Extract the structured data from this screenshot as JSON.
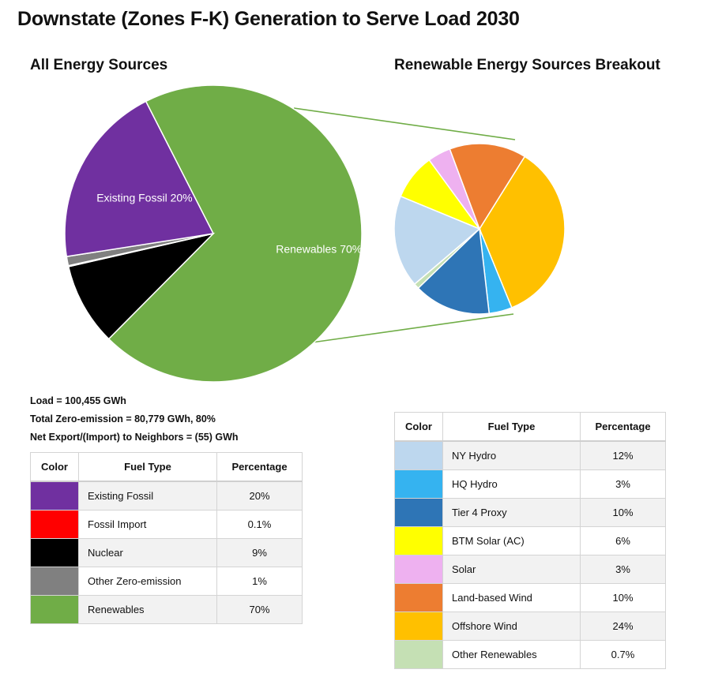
{
  "title": "Downstate (Zones F-K) Generation to Serve Load 2030",
  "colors": {
    "existing_fossil": "#7030a0",
    "fossil_import": "#ff0000",
    "nuclear": "#000000",
    "other_zero_emission": "#808080",
    "renewables": "#70ad47",
    "ny_hydro": "#bdd7ee",
    "hq_hydro": "#35b3f0",
    "tier4_proxy": "#2e75b6",
    "btm_solar": "#ffff00",
    "solar": "#eeb1f0",
    "land_wind": "#ed7d31",
    "offshore_wind": "#ffc000",
    "other_renewables": "#c5e0b4"
  },
  "stats": {
    "load": "Load = 100,455 GWh",
    "zero_emission": "Total Zero-emission = 80,779 GWh, 80%",
    "net_export": "Net Export/(Import) to Neighbors = (55) GWh"
  },
  "tables": {
    "headers": {
      "color": "Color",
      "fuel": "Fuel Type",
      "pct": "Percentage"
    },
    "left_rows": [
      {
        "fuel": "Existing Fossil",
        "pct": "20%",
        "color_key": "existing_fossil"
      },
      {
        "fuel": "Fossil Import",
        "pct": "0.1%",
        "color_key": "fossil_import"
      },
      {
        "fuel": "Nuclear",
        "pct": "9%",
        "color_key": "nuclear"
      },
      {
        "fuel": "Other Zero-emission",
        "pct": "1%",
        "color_key": "other_zero_emission"
      },
      {
        "fuel": "Renewables",
        "pct": "70%",
        "color_key": "renewables"
      }
    ],
    "right_rows": [
      {
        "fuel": "NY Hydro",
        "pct": "12%",
        "color_key": "ny_hydro"
      },
      {
        "fuel": "HQ Hydro",
        "pct": "3%",
        "color_key": "hq_hydro"
      },
      {
        "fuel": "Tier 4 Proxy",
        "pct": "10%",
        "color_key": "tier4_proxy"
      },
      {
        "fuel": "BTM Solar (AC)",
        "pct": "6%",
        "color_key": "btm_solar"
      },
      {
        "fuel": "Solar",
        "pct": "3%",
        "color_key": "solar"
      },
      {
        "fuel": "Land-based Wind",
        "pct": "10%",
        "color_key": "land_wind"
      },
      {
        "fuel": "Offshore Wind",
        "pct": "24%",
        "color_key": "offshore_wind"
      },
      {
        "fuel": "Other Renewables",
        "pct": "0.7%",
        "color_key": "other_renewables"
      }
    ]
  },
  "chart_data": [
    {
      "type": "pie",
      "title": "All Energy Sources",
      "slices": [
        {
          "label": "Renewables",
          "value": 70,
          "color_key": "renewables",
          "data_label": "Renewables 70%"
        },
        {
          "label": "Nuclear",
          "value": 9,
          "color_key": "nuclear",
          "data_label": ""
        },
        {
          "label": "Fossil Import",
          "value": 0.1,
          "color_key": "fossil_import",
          "data_label": ""
        },
        {
          "label": "Other Zero-emission",
          "value": 1,
          "color_key": "other_zero_emission",
          "data_label": ""
        },
        {
          "label": "Existing Fossil",
          "value": 20,
          "color_key": "existing_fossil",
          "data_label": "Existing Fossil 20%"
        }
      ]
    },
    {
      "type": "pie",
      "title": "Renewable Energy Sources Breakout",
      "slices": [
        {
          "label": "Offshore Wind",
          "value": 24,
          "color_key": "offshore_wind"
        },
        {
          "label": "HQ Hydro",
          "value": 3,
          "color_key": "hq_hydro"
        },
        {
          "label": "Tier 4 Proxy",
          "value": 10,
          "color_key": "tier4_proxy"
        },
        {
          "label": "Other Renewables",
          "value": 0.7,
          "color_key": "other_renewables"
        },
        {
          "label": "NY Hydro",
          "value": 12,
          "color_key": "ny_hydro"
        },
        {
          "label": "BTM Solar (AC)",
          "value": 6,
          "color_key": "btm_solar"
        },
        {
          "label": "Solar",
          "value": 3,
          "color_key": "solar"
        },
        {
          "label": "Land-based Wind",
          "value": 10,
          "color_key": "land_wind"
        }
      ]
    }
  ]
}
